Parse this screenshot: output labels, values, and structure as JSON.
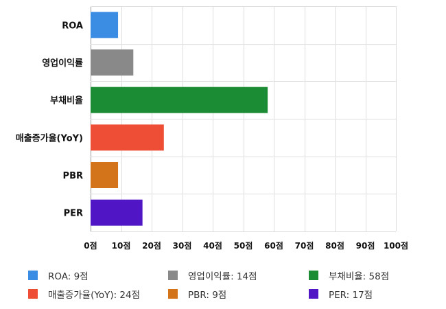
{
  "chart_data": {
    "type": "bar",
    "orientation": "horizontal",
    "categories": [
      "ROA",
      "영업이익률",
      "부채비율",
      "매출증가율(YoY)",
      "PBR",
      "PER"
    ],
    "values": [
      9,
      14,
      58,
      24,
      9,
      17
    ],
    "colors": [
      "#3b8de3",
      "#898989",
      "#1c8c34",
      "#ee4e35",
      "#d3741a",
      "#5015c4"
    ],
    "xlim": [
      0,
      100
    ],
    "x_ticks": [
      0,
      10,
      20,
      30,
      40,
      50,
      60,
      70,
      80,
      90,
      100
    ],
    "tick_labels": [
      "0점",
      "10점",
      "20점",
      "30점",
      "40점",
      "50점",
      "60점",
      "70점",
      "80점",
      "90점",
      "100점"
    ],
    "grid": true,
    "legend_position": "bottom",
    "legend": [
      {
        "label": "ROA: 9점",
        "color": "#3b8de3"
      },
      {
        "label": "영업이익률: 14점",
        "color": "#898989"
      },
      {
        "label": "부채비율: 58점",
        "color": "#1c8c34"
      },
      {
        "label": "매출증가율(YoY): 24점",
        "color": "#ee4e35"
      },
      {
        "label": "PBR: 9점",
        "color": "#d3741a"
      },
      {
        "label": "PER: 17점",
        "color": "#5015c4"
      }
    ]
  }
}
